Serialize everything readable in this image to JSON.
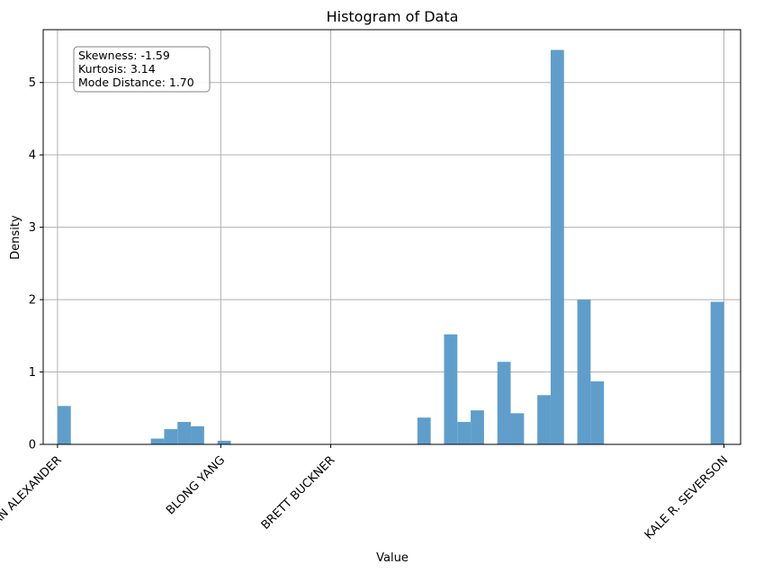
{
  "chart_data": {
    "type": "bar",
    "title": "Histogram of Data",
    "xlabel": "Value",
    "ylabel": "Density",
    "xlim": [
      -0.0215,
      1.025
    ],
    "ylim": [
      0,
      5.73
    ],
    "y_ticks": [
      0,
      1,
      2,
      3,
      4,
      5
    ],
    "x_ticks": [
      {
        "value": 0.0,
        "label": "IAN ALEXANDER"
      },
      {
        "value": 0.245,
        "label": "BLONG YANG"
      },
      {
        "value": 0.41,
        "label": "BRETT BUCKNER"
      },
      {
        "value": 1.0,
        "label": "KALE R. SEVERSON"
      }
    ],
    "grid": true,
    "bin_width": 0.02,
    "bars": [
      {
        "x0": 0.0,
        "value": 0.53
      },
      {
        "x0": 0.14,
        "value": 0.08
      },
      {
        "x0": 0.16,
        "value": 0.21
      },
      {
        "x0": 0.18,
        "value": 0.31
      },
      {
        "x0": 0.2,
        "value": 0.25
      },
      {
        "x0": 0.24,
        "value": 0.05
      },
      {
        "x0": 0.54,
        "value": 0.37
      },
      {
        "x0": 0.58,
        "value": 1.52
      },
      {
        "x0": 0.6,
        "value": 0.31
      },
      {
        "x0": 0.62,
        "value": 0.47
      },
      {
        "x0": 0.66,
        "value": 1.14
      },
      {
        "x0": 0.68,
        "value": 0.43
      },
      {
        "x0": 0.72,
        "value": 0.68
      },
      {
        "x0": 0.74,
        "value": 5.45
      },
      {
        "x0": 0.78,
        "value": 2.0
      },
      {
        "x0": 0.8,
        "value": 0.87
      },
      {
        "x0": 0.98,
        "value": 1.97
      }
    ],
    "bar_color": "#5f9ecb",
    "stats_box": {
      "lines": [
        "Skewness: -1.59",
        "Kurtosis: 3.14",
        "Mode Distance: 1.70"
      ],
      "placement": "top-left"
    }
  }
}
